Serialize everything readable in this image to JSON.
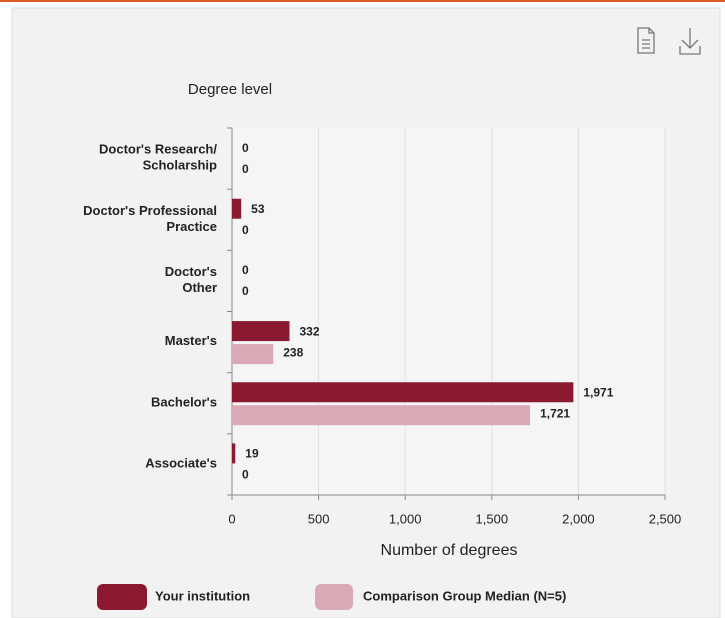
{
  "chart_data": {
    "type": "bar",
    "orientation": "horizontal",
    "y_axis_title": "Degree level",
    "x_axis_title": "Number of degrees",
    "categories": [
      [
        "Doctor's Research/",
        "Scholarship"
      ],
      [
        "Doctor's Professional",
        "Practice"
      ],
      [
        "Doctor's",
        "Other"
      ],
      [
        "Master's"
      ],
      [
        "Bachelor's"
      ],
      [
        "Associate's"
      ]
    ],
    "series": [
      {
        "name": "Your institution",
        "color": "#8b1a31",
        "values": [
          0,
          53,
          0,
          332,
          1971,
          19
        ],
        "value_labels": [
          "0",
          "53",
          "0",
          "332",
          "1,971",
          "19"
        ]
      },
      {
        "name": "Comparison Group Median (N=5)",
        "color": "#d9aab5",
        "values": [
          0,
          0,
          0,
          238,
          1721,
          0
        ],
        "value_labels": [
          "0",
          "0",
          "0",
          "238",
          "1,721",
          "0"
        ]
      }
    ],
    "xlim": [
      0,
      2500
    ],
    "xticks": [
      0,
      500,
      {
        "value": 1000,
        "label": "1,000"
      },
      {
        "value": 1500,
        "label": "1,500"
      },
      {
        "value": 2000,
        "label": "2,000"
      },
      {
        "value": 2500,
        "label": "2,500"
      }
    ],
    "grid": true
  }
}
